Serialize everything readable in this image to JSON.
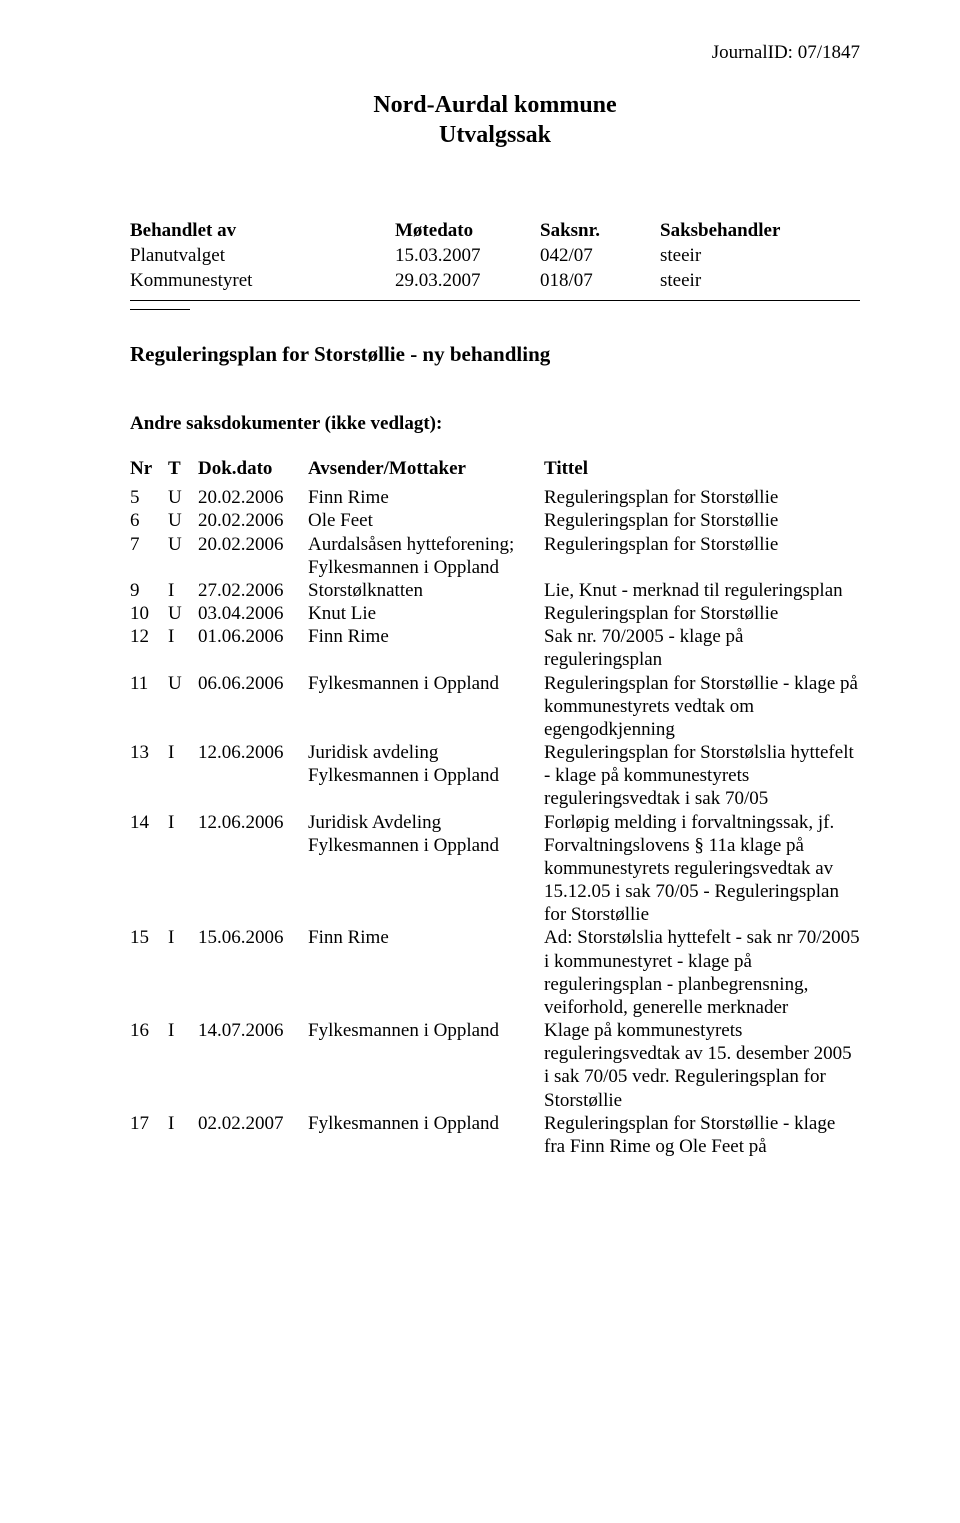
{
  "journal_id": "JournalID: 07/1847",
  "header": {
    "municipality": "Nord-Aurdal kommune",
    "doc_type": "Utvalgssak"
  },
  "meta_table": {
    "head": {
      "handled_by": "Behandlet av",
      "meeting_date": "Møtedato",
      "case_no": "Saksnr.",
      "handler": "Saksbehandler"
    },
    "rows": [
      {
        "handled_by": "Planutvalget",
        "meeting_date": "15.03.2007",
        "case_no": "042/07",
        "handler": "steeir"
      },
      {
        "handled_by": "Kommunestyret",
        "meeting_date": "29.03.2007",
        "case_no": "018/07",
        "handler": "steeir"
      }
    ]
  },
  "case_title": "Reguleringsplan for Storstøllie - ny behandling",
  "attachments_heading": "Andre saksdokumenter (ikke vedlagt):",
  "doc_table": {
    "head": {
      "nr": "Nr",
      "t": "T",
      "date": "Dok.dato",
      "sender": "Avsender/Mottaker",
      "title": "Tittel"
    },
    "rows": [
      {
        "nr": "5",
        "t": "U",
        "date": "20.02.2006",
        "sender": "Finn Rime",
        "title": "Reguleringsplan for Storstøllie"
      },
      {
        "nr": "6",
        "t": "U",
        "date": "20.02.2006",
        "sender": "Ole Feet",
        "title": "Reguleringsplan for Storstøllie"
      },
      {
        "nr": "7",
        "t": "U",
        "date": "20.02.2006",
        "sender": "Aurdalsåsen hytteforening; Fylkesmannen i Oppland",
        "title": "Reguleringsplan for Storstøllie"
      },
      {
        "nr": "9",
        "t": "I",
        "date": "27.02.2006",
        "sender": "Storstølknatten",
        "title": "Lie, Knut - merknad til reguleringsplan"
      },
      {
        "nr": "10",
        "t": "U",
        "date": "03.04.2006",
        "sender": "Knut Lie",
        "title": "Reguleringsplan for Storstøllie"
      },
      {
        "nr": "12",
        "t": "I",
        "date": "01.06.2006",
        "sender": "Finn Rime",
        "title": "Sak nr. 70/2005 - klage på reguleringsplan"
      },
      {
        "nr": "11",
        "t": "U",
        "date": "06.06.2006",
        "sender": "Fylkesmannen i Oppland",
        "title": "Reguleringsplan for Storstøllie - klage på kommunestyrets vedtak om egengodkjenning"
      },
      {
        "nr": "13",
        "t": "I",
        "date": "12.06.2006",
        "sender": "Juridisk avdeling Fylkesmannen i Oppland",
        "title": "Reguleringsplan for Storstølslia hyttefelt - klage på kommunestyrets reguleringsvedtak i sak 70/05"
      },
      {
        "nr": "14",
        "t": "I",
        "date": "12.06.2006",
        "sender": "Juridisk Avdeling Fylkesmannen i Oppland",
        "title": "Forløpig melding i forvaltningssak, jf. Forvaltningslovens § 11a klage på kommunestyrets reguleringsvedtak av 15.12.05 i sak 70/05 - Reguleringsplan for Storstøllie"
      },
      {
        "nr": "15",
        "t": "I",
        "date": "15.06.2006",
        "sender": "Finn Rime",
        "title": "Ad: Storstølslia hyttefelt - sak nr 70/2005 i kommunestyret - klage på reguleringsplan - planbegrensning, veiforhold, generelle merknader"
      },
      {
        "nr": "16",
        "t": "I",
        "date": "14.07.2006",
        "sender": "Fylkesmannen i Oppland",
        "title": "Klage på kommunestyrets reguleringsvedtak av 15. desember 2005 i sak 70/05 vedr. Reguleringsplan for Storstøllie"
      },
      {
        "nr": "17",
        "t": "I",
        "date": "02.02.2007",
        "sender": "Fylkesmannen i Oppland",
        "title": "Reguleringsplan for Storstøllie - klage fra Finn Rime og Ole Feet på"
      }
    ]
  }
}
